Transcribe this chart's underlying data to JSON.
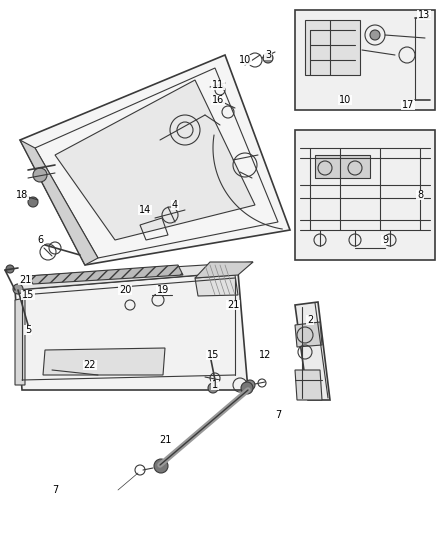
{
  "bg_color": "#ffffff",
  "line_color": "#3a3a3a",
  "gray": "#888888",
  "light_gray": "#cccccc",
  "figsize": [
    4.38,
    5.33
  ],
  "dpi": 100,
  "labels": [
    [
      "1",
      215,
      385
    ],
    [
      "2",
      310,
      320
    ],
    [
      "3",
      268,
      55
    ],
    [
      "4",
      175,
      205
    ],
    [
      "5",
      28,
      330
    ],
    [
      "6",
      40,
      240
    ],
    [
      "7",
      55,
      490
    ],
    [
      "7",
      278,
      415
    ],
    [
      "8",
      420,
      195
    ],
    [
      "9",
      385,
      240
    ],
    [
      "10",
      245,
      60
    ],
    [
      "10",
      345,
      100
    ],
    [
      "11",
      218,
      85
    ],
    [
      "12",
      265,
      355
    ],
    [
      "13",
      424,
      15
    ],
    [
      "14",
      145,
      210
    ],
    [
      "15",
      28,
      295
    ],
    [
      "15",
      213,
      355
    ],
    [
      "16",
      218,
      100
    ],
    [
      "17",
      408,
      105
    ],
    [
      "18",
      22,
      195
    ],
    [
      "19",
      163,
      290
    ],
    [
      "20",
      125,
      290
    ],
    [
      "21",
      25,
      280
    ],
    [
      "21",
      233,
      305
    ],
    [
      "21",
      165,
      440
    ],
    [
      "22",
      90,
      365
    ]
  ]
}
